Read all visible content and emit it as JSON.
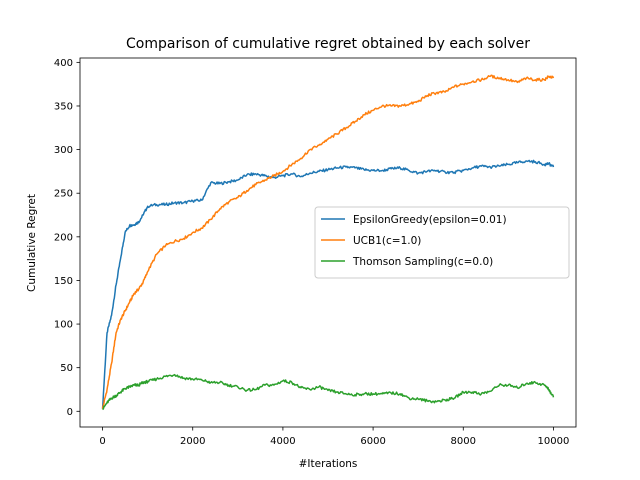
{
  "chart_data": {
    "type": "line",
    "title": "Comparison of cumulative regret obtained by each solver",
    "xlabel": "#Iterations",
    "ylabel": "Cumulative Regret",
    "xlim": [
      -500,
      10500
    ],
    "ylim": [
      -18,
      405
    ],
    "xticks": [
      0,
      2000,
      4000,
      6000,
      8000,
      10000
    ],
    "yticks": [
      0,
      50,
      100,
      150,
      200,
      250,
      300,
      350,
      400
    ],
    "grid": false,
    "legend_position": "center-right",
    "series": [
      {
        "name": "EpsilonGreedy(epsilon=0.01)",
        "color": "#1f77b4",
        "x": [
          0,
          100,
          200,
          300,
          400,
          500,
          600,
          700,
          800,
          900,
          1000,
          1200,
          1400,
          1600,
          1800,
          2000,
          2200,
          2400,
          2600,
          2800,
          3000,
          3200,
          3400,
          3600,
          3800,
          4000,
          4200,
          4400,
          4600,
          4800,
          5000,
          5200,
          5400,
          5600,
          5800,
          6000,
          6200,
          6400,
          6600,
          6800,
          7000,
          7200,
          7400,
          7600,
          7800,
          8000,
          8200,
          8400,
          8600,
          8800,
          9000,
          9200,
          9400,
          9600,
          9800,
          9900,
          10000
        ],
        "y": [
          3,
          90,
          110,
          145,
          175,
          205,
          213,
          214,
          217,
          225,
          235,
          237,
          237,
          239,
          239,
          241,
          242,
          262,
          261,
          263,
          265,
          271,
          272,
          270,
          268,
          270,
          272,
          269,
          273,
          275,
          277,
          279,
          280,
          279,
          277,
          276,
          276,
          278,
          279,
          276,
          273,
          275,
          276,
          274,
          274,
          276,
          279,
          281,
          280,
          281,
          283,
          285,
          287,
          286,
          283,
          284,
          280
        ]
      },
      {
        "name": "UCB1(c=1.0)",
        "color": "#ff7f0e",
        "x": [
          0,
          100,
          200,
          300,
          400,
          500,
          600,
          700,
          800,
          900,
          1000,
          1200,
          1400,
          1600,
          1800,
          2000,
          2200,
          2400,
          2600,
          2800,
          3000,
          3200,
          3400,
          3600,
          3800,
          4000,
          4200,
          4400,
          4600,
          4800,
          5000,
          5200,
          5400,
          5600,
          5800,
          6000,
          6200,
          6400,
          6600,
          6800,
          7000,
          7200,
          7400,
          7600,
          7800,
          8000,
          8200,
          8400,
          8600,
          8800,
          9000,
          9200,
          9400,
          9600,
          9800,
          9900,
          10000
        ],
        "y": [
          3,
          25,
          55,
          90,
          105,
          115,
          125,
          135,
          140,
          148,
          160,
          180,
          190,
          195,
          198,
          205,
          210,
          220,
          232,
          240,
          245,
          253,
          260,
          265,
          270,
          275,
          283,
          290,
          300,
          305,
          312,
          318,
          325,
          332,
          340,
          345,
          350,
          350,
          350,
          352,
          355,
          362,
          365,
          366,
          372,
          375,
          378,
          380,
          384,
          382,
          380,
          377,
          382,
          380,
          380,
          384,
          382
        ]
      },
      {
        "name": "Thomson Sampling(c=0.0)",
        "color": "#2ca02c",
        "x": [
          0,
          100,
          200,
          300,
          400,
          500,
          600,
          700,
          800,
          900,
          1000,
          1200,
          1400,
          1600,
          1800,
          2000,
          2200,
          2400,
          2600,
          2800,
          3000,
          3200,
          3400,
          3600,
          3800,
          4000,
          4200,
          4400,
          4600,
          4800,
          5000,
          5200,
          5400,
          5600,
          5800,
          6000,
          6200,
          6400,
          6600,
          6800,
          7000,
          7200,
          7400,
          7600,
          7800,
          8000,
          8200,
          8400,
          8600,
          8800,
          9000,
          9200,
          9400,
          9600,
          9800,
          9900,
          10000
        ],
        "y": [
          2,
          10,
          15,
          18,
          22,
          26,
          28,
          30,
          30,
          33,
          34,
          37,
          40,
          42,
          38,
          37,
          36,
          33,
          33,
          30,
          28,
          24,
          25,
          30,
          30,
          35,
          33,
          27,
          25,
          28,
          24,
          22,
          20,
          19,
          20,
          20,
          20,
          21,
          20,
          15,
          14,
          12,
          11,
          13,
          15,
          22,
          22,
          20,
          23,
          30,
          30,
          27,
          32,
          33,
          30,
          25,
          16
        ]
      }
    ]
  }
}
